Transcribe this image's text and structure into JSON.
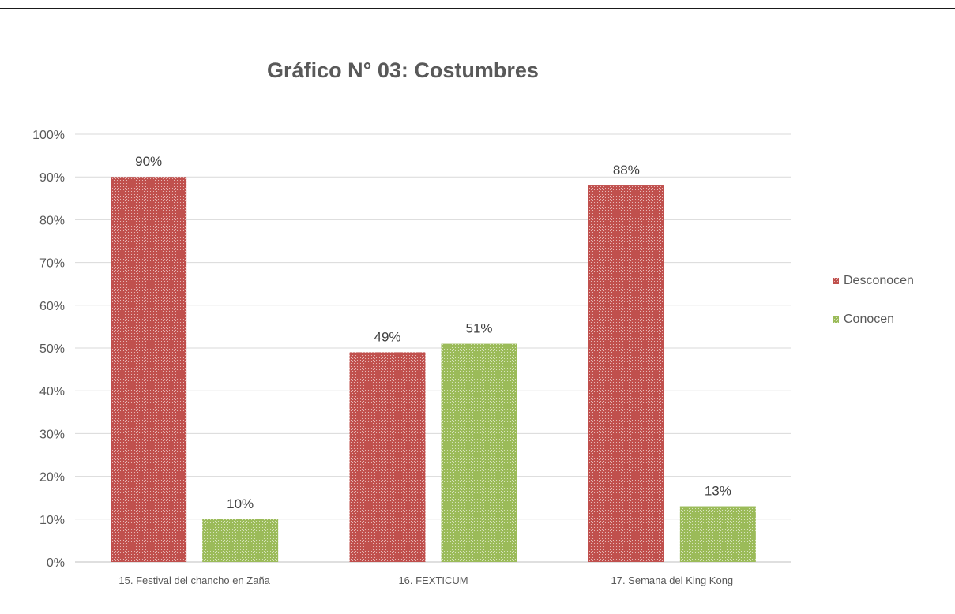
{
  "chart_data": {
    "type": "bar",
    "title": "Gráfico N° 03: Costumbres",
    "categories": [
      "15. Festival del chancho en Zaña",
      "16. FEXTICUM",
      "17. Semana del King Kong"
    ],
    "series": [
      {
        "name": "Desconocen",
        "values": [
          90,
          49,
          88
        ],
        "labels": [
          "90%",
          "49%",
          "88%"
        ],
        "color": "#c0504d"
      },
      {
        "name": "Conocen",
        "values": [
          10,
          51,
          13
        ],
        "labels": [
          "10%",
          "51%",
          "13%"
        ],
        "color": "#9bbb59"
      }
    ],
    "ylim": [
      0,
      100
    ],
    "yticks": [
      "0%",
      "10%",
      "20%",
      "30%",
      "40%",
      "50%",
      "60%",
      "70%",
      "80%",
      "90%",
      "100%"
    ],
    "xlabel": "",
    "ylabel": "",
    "grid": true,
    "legend": "right"
  }
}
